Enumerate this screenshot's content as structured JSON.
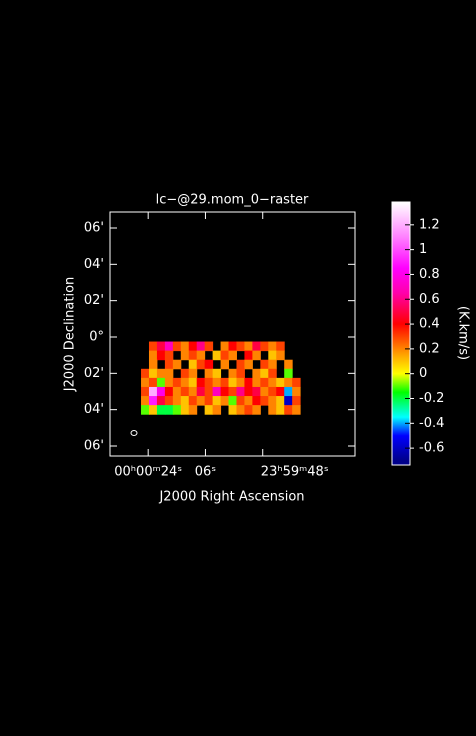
{
  "chart_data": {
    "type": "raster",
    "title": "lc−@29.mom_0−raster",
    "x_label": "J2000 Right Ascension",
    "y_label": "J2000 Declination",
    "colorbar_label": "(K.km/s)",
    "background": "#000000",
    "frame_color": "#ffffff",
    "xlim": [
      36,
      -41
    ],
    "xticks": [
      {
        "value": 24,
        "label": "00ʰ00ᵐ24ˢ"
      },
      {
        "value": 6,
        "label": "06ˢ"
      },
      {
        "value": -12,
        "label": "23ʰ59ᵐ48ˢ"
      }
    ],
    "ylim": [
      -6.55,
      6.88
    ],
    "yticks": [
      {
        "value": 6,
        "label": "06'"
      },
      {
        "value": 4,
        "label": "04'"
      },
      {
        "value": 2,
        "label": "02'"
      },
      {
        "value": 0,
        "label": "0°"
      },
      {
        "value": -2,
        "label": "02'"
      },
      {
        "value": -4,
        "label": "04'"
      },
      {
        "value": -6,
        "label": "06'"
      }
    ],
    "clim": [
      -0.736,
      1.384
    ],
    "cticks": [
      1.2,
      1,
      0.8,
      0.6,
      0.4,
      0.2,
      0,
      -0.2,
      -0.4,
      -0.6
    ],
    "colormap": [
      {
        "value": -0.7,
        "color": "#00008b"
      },
      {
        "value": -0.5,
        "color": "#0000ff"
      },
      {
        "value": -0.35,
        "color": "#00ffff"
      },
      {
        "value": -0.15,
        "color": "#00ff00"
      },
      {
        "value": 0,
        "color": "#ffff00"
      },
      {
        "value": 0.15,
        "color": "#ffa500"
      },
      {
        "value": 0.4,
        "color": "#ff0000"
      },
      {
        "value": 0.65,
        "color": "#ff00aa"
      },
      {
        "value": 0.85,
        "color": "#ff00ff"
      },
      {
        "value": 1.1,
        "color": "#ff80ff"
      },
      {
        "value": 1.38,
        "color": "#ffffff"
      }
    ],
    "raster": {
      "x": [
        25,
        22.5,
        20,
        17.5,
        15,
        12.5,
        10,
        7.5,
        5,
        2.5,
        0,
        -2.5,
        -5,
        -7.5,
        -10,
        -12.5,
        -15,
        -17.5,
        -20,
        -22.5
      ],
      "y": [
        -0.5,
        -1,
        -1.5,
        -2,
        -2.5,
        -3,
        -3.5,
        -4
      ],
      "values": [
        [
          null,
          0.3,
          0.5,
          0.7,
          0.3,
          0.2,
          0.4,
          0.6,
          0.3,
          null,
          0.2,
          0.4,
          0.3,
          0.2,
          0.5,
          0.3,
          0.2,
          0.3,
          null,
          null
        ],
        [
          null,
          0.2,
          0.4,
          0.3,
          null,
          0.2,
          0.3,
          0.2,
          null,
          0.1,
          0.3,
          0.2,
          null,
          0.4,
          0.2,
          null,
          0.1,
          0.2,
          null,
          null
        ],
        [
          null,
          0.2,
          null,
          0.3,
          0.2,
          null,
          0.1,
          0.3,
          0.4,
          null,
          0.2,
          null,
          0.3,
          0.2,
          null,
          0.3,
          0.2,
          null,
          0.2,
          null
        ],
        [
          0.3,
          0.1,
          0.2,
          0.2,
          null,
          0.3,
          0.2,
          null,
          0.2,
          0.1,
          null,
          0.2,
          0.3,
          null,
          0.2,
          0.1,
          0.3,
          null,
          -0.1,
          null
        ],
        [
          0.2,
          0.3,
          -0.1,
          0.2,
          0.3,
          0.2,
          0.1,
          0.4,
          0.3,
          0.2,
          0.3,
          0.1,
          0.2,
          0.4,
          0.2,
          0.3,
          0.2,
          0.1,
          0.2,
          0.3
        ],
        [
          0.3,
          1.2,
          0.8,
          0.4,
          0.2,
          0.3,
          0.2,
          0.5,
          0.3,
          0.7,
          0.4,
          0.3,
          0.6,
          0.4,
          0.5,
          0.2,
          0.3,
          0.4,
          -0.4,
          0.2
        ],
        [
          0.2,
          0.9,
          0.5,
          0.3,
          0.2,
          0.1,
          0.3,
          0.2,
          0.3,
          0.1,
          0.2,
          -0.1,
          0.3,
          0.2,
          0.4,
          0.3,
          0.2,
          0.1,
          -0.6,
          0.3
        ],
        [
          -0.1,
          0.1,
          -0.2,
          -0.2,
          -0.1,
          0.1,
          0.2,
          null,
          0.1,
          0.2,
          null,
          0.1,
          0.2,
          0.3,
          0.2,
          null,
          0.2,
          0.1,
          0.3,
          0.2
        ]
      ]
    }
  }
}
